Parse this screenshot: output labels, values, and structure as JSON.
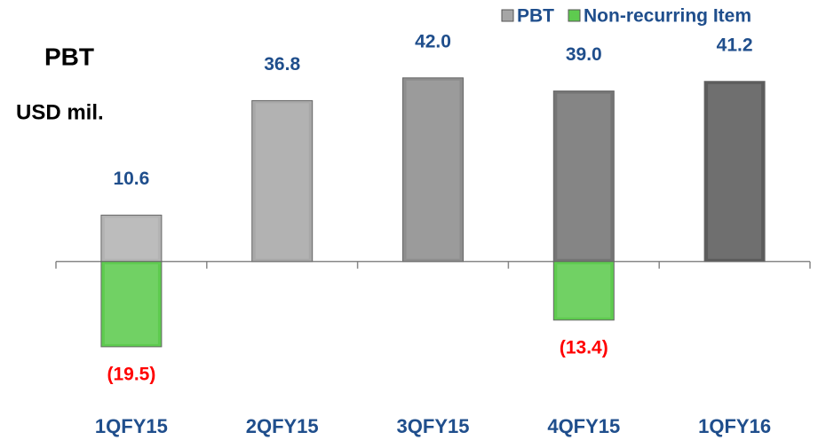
{
  "chart_data": {
    "type": "bar",
    "title": "PBT",
    "subtitle": "USD mil.",
    "categories": [
      "1QFY15",
      "2QFY15",
      "3QFY15",
      "4QFY15",
      "1QFY16"
    ],
    "series": [
      {
        "name": "PBT",
        "color": "#a6a6a6",
        "colors": [
          "#b3b3b3",
          "#a8a8a8",
          "#8e8e8e",
          "#757575",
          "#5c5c5c"
        ],
        "values": [
          10.6,
          36.8,
          42.0,
          39.0,
          41.2
        ],
        "value_labels": [
          "10.6",
          "36.8",
          "42.0",
          "39.0",
          "41.2"
        ],
        "label_color": "#1f4e8c"
      },
      {
        "name": "Non-recurring Item",
        "color": "#5ecb4f",
        "values": [
          -19.5,
          null,
          null,
          -13.4,
          null
        ],
        "value_labels": [
          "(19.5)",
          null,
          null,
          "(13.4)",
          null
        ],
        "label_color": "#ff0000"
      }
    ],
    "ylim": [
      -25,
      45
    ]
  }
}
